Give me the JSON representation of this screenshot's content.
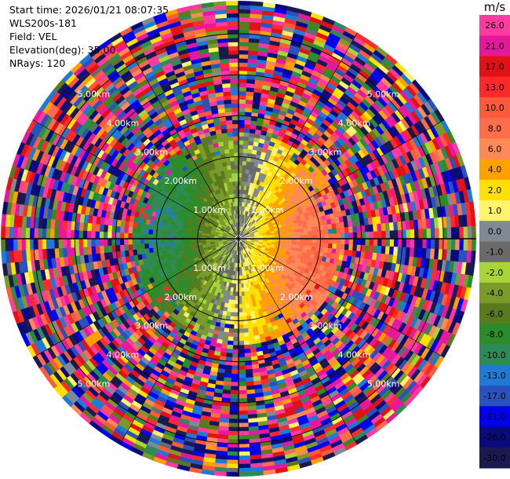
{
  "header": {
    "start_time": "Start time: 2026/01/21 08:07:35",
    "instrument": "WLS200s-181",
    "field": "Field: VEL",
    "elevation": "Elevation(deg): 35.00",
    "nrays": "NRays: 120"
  },
  "colorbar": {
    "unit": "m/s",
    "ticks": [
      "26.0",
      "21.0",
      "17.0",
      "13.0",
      "10.0",
      "8.0",
      "6.0",
      "4.0",
      "2.0",
      "1.0",
      "0.0",
      "-1.0",
      "-2.0",
      "-4.0",
      "-6.0",
      "-8.0",
      "-10.0",
      "-13.0",
      "-17.0",
      "-21.0",
      "-26.0",
      "-30.0"
    ],
    "bins": [
      {
        "lo": 26,
        "hi": 30,
        "color": "#ff3aa0"
      },
      {
        "lo": 21,
        "hi": 26,
        "color": "#e6189e"
      },
      {
        "lo": 17,
        "hi": 21,
        "color": "#e01218"
      },
      {
        "lo": 13,
        "hi": 17,
        "color": "#ff2b2b"
      },
      {
        "lo": 10,
        "hi": 13,
        "color": "#ff5a3a"
      },
      {
        "lo": 8,
        "hi": 10,
        "color": "#ff6d4d"
      },
      {
        "lo": 6,
        "hi": 8,
        "color": "#ff8a55"
      },
      {
        "lo": 4,
        "hi": 6,
        "color": "#ffa000"
      },
      {
        "lo": 2,
        "hi": 4,
        "color": "#ffe000"
      },
      {
        "lo": 1,
        "hi": 2,
        "color": "#fff46a"
      },
      {
        "lo": 0,
        "hi": 1,
        "color": "#7f8a94"
      },
      {
        "lo": -1,
        "hi": 0,
        "color": "#6a6a6a"
      },
      {
        "lo": -2,
        "hi": -1,
        "color": "#a8d438"
      },
      {
        "lo": -4,
        "hi": -2,
        "color": "#7a9a2a"
      },
      {
        "lo": -6,
        "hi": -4,
        "color": "#5a7a1e"
      },
      {
        "lo": -8,
        "hi": -6,
        "color": "#2a8c2a"
      },
      {
        "lo": -10,
        "hi": -8,
        "color": "#2e8b57"
      },
      {
        "lo": -13,
        "hi": -10,
        "color": "#1e7ad4"
      },
      {
        "lo": -17,
        "hi": -13,
        "color": "#2a52be"
      },
      {
        "lo": -21,
        "hi": -17,
        "color": "#0000ee"
      },
      {
        "lo": -26,
        "hi": -21,
        "color": "#0a0a7a"
      },
      {
        "lo": -30,
        "hi": -26,
        "color": "#1a1a50"
      }
    ]
  },
  "chart_data": {
    "type": "heatmap",
    "plot": "ppi",
    "field": "VEL",
    "units": "m/s",
    "elevation_deg": 35.0,
    "n_rays": 120,
    "max_range_km": 5.8,
    "range_rings_km": [
      1.0,
      2.0,
      3.0,
      4.0,
      5.0
    ],
    "range_ring_labels": [
      "1.00km",
      "2.00km",
      "3.00km",
      "4.00km",
      "5.00km"
    ],
    "value_range": [
      -30.0,
      30.0
    ]
  }
}
